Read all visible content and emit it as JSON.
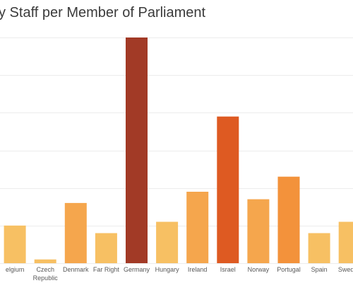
{
  "chart_data": {
    "type": "bar",
    "title": "y Staff per Member of Parliament",
    "xlabel": "",
    "ylabel": "",
    "categories": [
      "elgium",
      "Czech\nRepublic",
      "Denmark",
      "Far Right",
      "Germany",
      "Hungary",
      "Ireland",
      "Israel",
      "Norway",
      "Portugal",
      "Spain",
      "Sweden"
    ],
    "values": [
      1.0,
      0.1,
      1.6,
      0.8,
      6.0,
      1.1,
      1.9,
      3.9,
      1.7,
      2.3,
      0.8,
      1.1
    ],
    "ylim": [
      0,
      6.0
    ],
    "grid": true,
    "legend": "none",
    "colors": [
      "#f7c063",
      "#f7c063",
      "#f5a64d",
      "#f7c063",
      "#a23a26",
      "#f7c063",
      "#f5a64d",
      "#de5a22",
      "#f5a64d",
      "#f3923b",
      "#f7c063",
      "#f7c063"
    ]
  }
}
